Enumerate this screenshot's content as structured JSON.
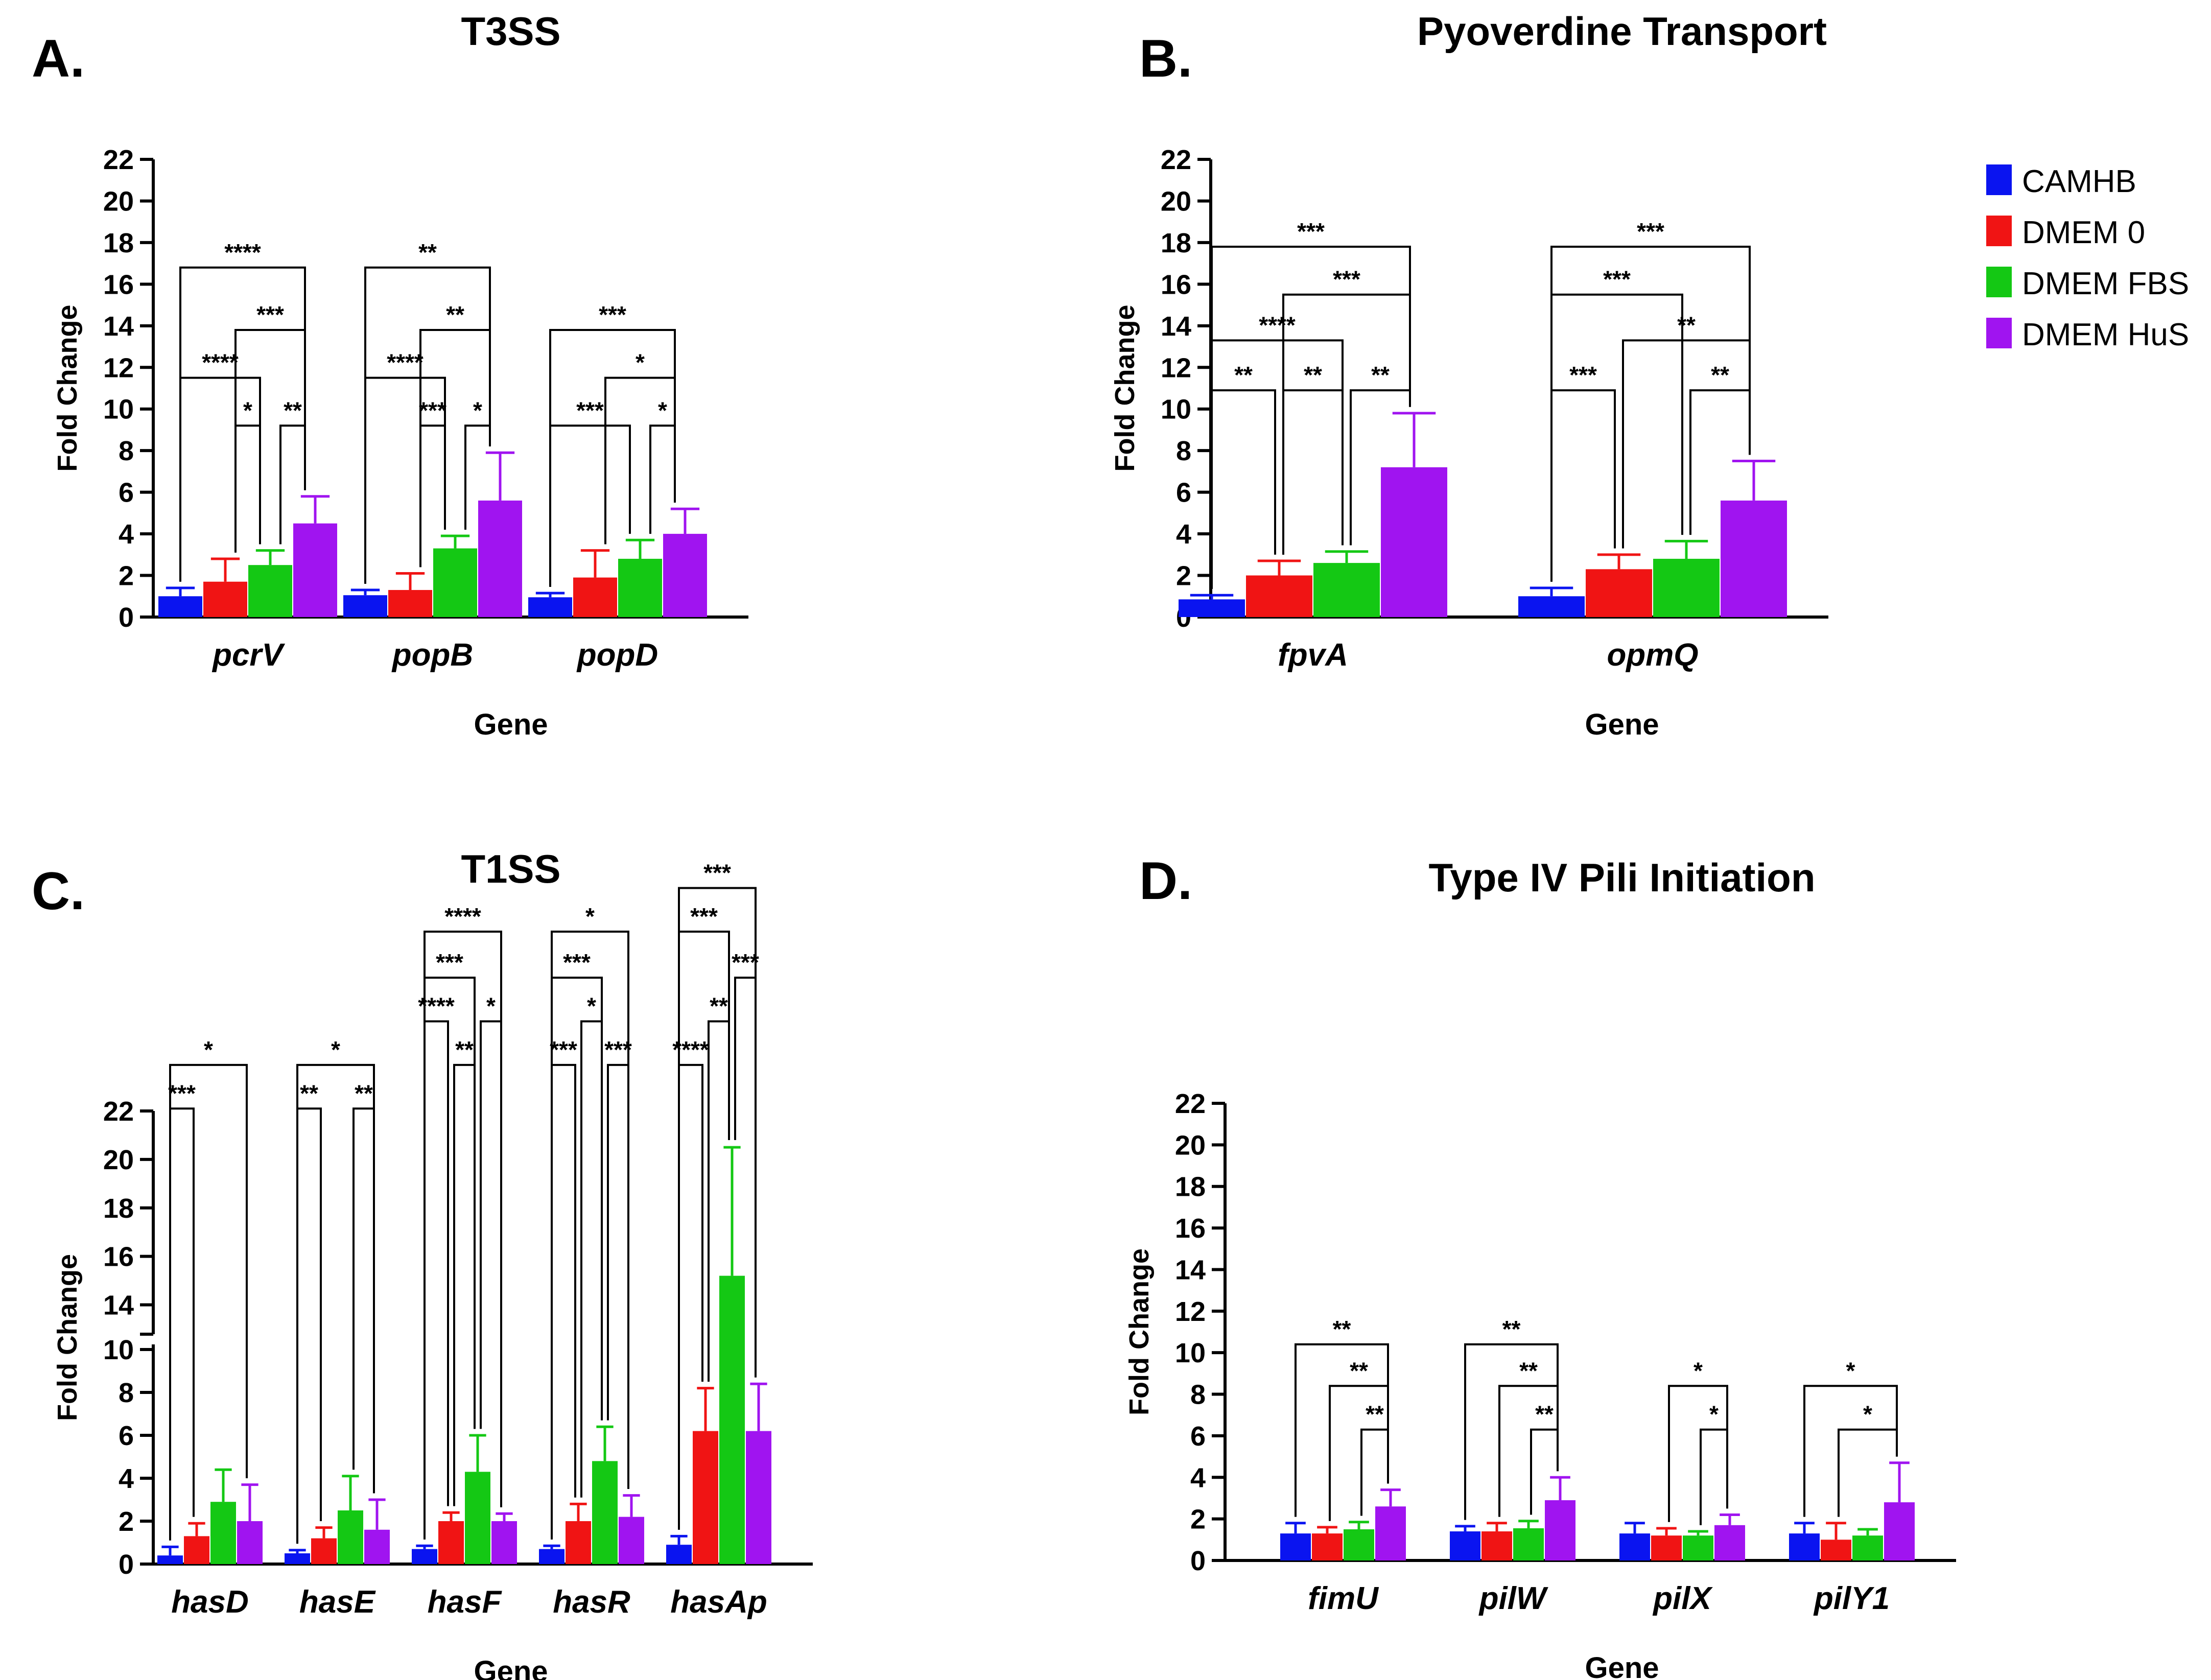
{
  "legend": {
    "position": "top-right",
    "items": [
      {
        "label": "CAMHB",
        "color": "#0a14f0"
      },
      {
        "label": "DMEM 0",
        "color": "#f01414"
      },
      {
        "label": "DMEM FBS",
        "color": "#14c814"
      },
      {
        "label": "DMEM HuS",
        "color": "#a014f0"
      }
    ]
  },
  "chart_data": [
    {
      "panel": "A.",
      "type": "bar",
      "title": "T3SS",
      "xlabel": "Gene",
      "ylabel": "Fold Change",
      "ylim": [
        0,
        22
      ],
      "yticks": [
        0,
        2,
        4,
        6,
        8,
        10,
        12,
        14,
        16,
        18,
        20,
        22
      ],
      "categories": [
        "pcrV",
        "popB",
        "popD"
      ],
      "series": [
        {
          "name": "CAMHB",
          "values": [
            1.0,
            1.05,
            0.95
          ],
          "errors": [
            0.4,
            0.25,
            0.2
          ]
        },
        {
          "name": "DMEM 0",
          "values": [
            1.7,
            1.3,
            1.9
          ],
          "errors": [
            1.1,
            0.8,
            1.3
          ]
        },
        {
          "name": "DMEM FBS",
          "values": [
            2.5,
            3.3,
            2.8
          ],
          "errors": [
            0.7,
            0.6,
            0.9
          ]
        },
        {
          "name": "DMEM HuS",
          "values": [
            4.5,
            5.6,
            4.0
          ],
          "errors": [
            1.3,
            2.3,
            1.2
          ]
        }
      ],
      "significance": [
        {
          "cat": 0,
          "from": 0,
          "to": 3,
          "y": 16.8,
          "label": "****"
        },
        {
          "cat": 0,
          "from": 1,
          "to": 3,
          "y": 13.8,
          "label": "***"
        },
        {
          "cat": 0,
          "from": 0,
          "to": 2,
          "y": 11.5,
          "label": "****"
        },
        {
          "cat": 0,
          "from": 1,
          "to": 2,
          "y": 9.2,
          "label": "*"
        },
        {
          "cat": 0,
          "from": 2,
          "to": 3,
          "y": 9.2,
          "label": "**"
        },
        {
          "cat": 1,
          "from": 0,
          "to": 3,
          "y": 16.8,
          "label": "**"
        },
        {
          "cat": 1,
          "from": 1,
          "to": 3,
          "y": 13.8,
          "label": "**"
        },
        {
          "cat": 1,
          "from": 0,
          "to": 2,
          "y": 11.5,
          "label": "****"
        },
        {
          "cat": 1,
          "from": 1,
          "to": 2,
          "y": 9.2,
          "label": "***"
        },
        {
          "cat": 1,
          "from": 2,
          "to": 3,
          "y": 9.2,
          "label": "*"
        },
        {
          "cat": 2,
          "from": 0,
          "to": 3,
          "y": 13.8,
          "label": "***"
        },
        {
          "cat": 2,
          "from": 1,
          "to": 3,
          "y": 11.5,
          "label": "*"
        },
        {
          "cat": 2,
          "from": 0,
          "to": 2,
          "y": 9.2,
          "label": "***"
        },
        {
          "cat": 2,
          "from": 2,
          "to": 3,
          "y": 9.2,
          "label": "*"
        }
      ]
    },
    {
      "panel": "B.",
      "type": "bar",
      "title": "Pyoverdine Transport",
      "xlabel": "Gene",
      "ylabel": "Fold Change",
      "ylim": [
        0,
        22
      ],
      "yticks": [
        0,
        2,
        4,
        6,
        8,
        10,
        12,
        14,
        16,
        18,
        20,
        22
      ],
      "categories": [
        "fpvA",
        "opmQ"
      ],
      "series": [
        {
          "name": "CAMHB",
          "values": [
            0.85,
            1.0
          ],
          "errors": [
            0.2,
            0.4
          ]
        },
        {
          "name": "DMEM 0",
          "values": [
            2.0,
            2.3
          ],
          "errors": [
            0.7,
            0.7
          ]
        },
        {
          "name": "DMEM FBS",
          "values": [
            2.6,
            2.8
          ],
          "errors": [
            0.55,
            0.85
          ]
        },
        {
          "name": "DMEM HuS",
          "values": [
            7.2,
            5.6
          ],
          "errors": [
            2.6,
            1.9
          ]
        }
      ],
      "significance": [
        {
          "cat": 0,
          "from": 0,
          "to": 3,
          "y": 17.8,
          "label": "***"
        },
        {
          "cat": 0,
          "from": 1,
          "to": 3,
          "y": 15.5,
          "label": "***"
        },
        {
          "cat": 0,
          "from": 0,
          "to": 2,
          "y": 13.3,
          "label": "****"
        },
        {
          "cat": 0,
          "from": 0,
          "to": 1,
          "y": 10.9,
          "label": "**"
        },
        {
          "cat": 0,
          "from": 1,
          "to": 2,
          "y": 10.9,
          "label": "**"
        },
        {
          "cat": 0,
          "from": 2,
          "to": 3,
          "y": 10.9,
          "label": "**"
        },
        {
          "cat": 1,
          "from": 0,
          "to": 3,
          "y": 17.8,
          "label": "***"
        },
        {
          "cat": 1,
          "from": 0,
          "to": 2,
          "y": 15.5,
          "label": "***"
        },
        {
          "cat": 1,
          "from": 1,
          "to": 3,
          "y": 13.3,
          "label": "**"
        },
        {
          "cat": 1,
          "from": 0,
          "to": 1,
          "y": 10.9,
          "label": "***"
        },
        {
          "cat": 1,
          "from": 2,
          "to": 3,
          "y": 10.9,
          "label": "**"
        }
      ]
    },
    {
      "panel": "C.",
      "type": "bar",
      "title": "T1SS",
      "xlabel": "Gene",
      "ylabel": "Fold Change",
      "ylim": [
        0,
        22
      ],
      "axis_break": [
        10,
        13
      ],
      "yticks": [
        0,
        2,
        4,
        6,
        8,
        10,
        14,
        16,
        18,
        20,
        22
      ],
      "categories": [
        "hasD",
        "hasE",
        "hasF",
        "hasR",
        "hasAp"
      ],
      "series": [
        {
          "name": "CAMHB",
          "values": [
            0.4,
            0.5,
            0.7,
            0.7,
            0.9
          ],
          "errors": [
            0.4,
            0.15,
            0.15,
            0.15,
            0.4
          ]
        },
        {
          "name": "DMEM 0",
          "values": [
            1.3,
            1.2,
            2.0,
            2.0,
            6.2
          ],
          "errors": [
            0.6,
            0.5,
            0.4,
            0.8,
            2.0
          ]
        },
        {
          "name": "DMEM FBS",
          "values": [
            2.9,
            2.5,
            4.3,
            4.8,
            15.2
          ],
          "errors": [
            1.5,
            1.6,
            1.7,
            1.6,
            5.3
          ]
        },
        {
          "name": "DMEM HuS",
          "values": [
            2.0,
            1.6,
            2.0,
            2.2,
            6.2
          ],
          "errors": [
            1.7,
            1.4,
            0.35,
            1.0,
            2.2
          ]
        }
      ],
      "significance": [
        {
          "cat": 0,
          "from": 0,
          "to": 3,
          "y": 23.9,
          "label": "*"
        },
        {
          "cat": 0,
          "from": 0,
          "to": 1,
          "y": 22.1,
          "label": "***"
        },
        {
          "cat": 1,
          "from": 0,
          "to": 3,
          "y": 23.9,
          "label": "*"
        },
        {
          "cat": 1,
          "from": 0,
          "to": 1,
          "y": 22.1,
          "label": "**"
        },
        {
          "cat": 1,
          "from": 2,
          "to": 3,
          "y": 22.1,
          "label": "**"
        },
        {
          "cat": 2,
          "from": 0,
          "to": 3,
          "y": 29.4,
          "label": "****"
        },
        {
          "cat": 2,
          "from": 0,
          "to": 2,
          "y": 27.5,
          "label": "***"
        },
        {
          "cat": 2,
          "from": 0,
          "to": 1,
          "y": 25.7,
          "label": "****"
        },
        {
          "cat": 2,
          "from": 2,
          "to": 3,
          "y": 25.7,
          "label": "*"
        },
        {
          "cat": 2,
          "from": 1,
          "to": 2,
          "y": 23.9,
          "label": "**"
        },
        {
          "cat": 3,
          "from": 0,
          "to": 3,
          "y": 29.4,
          "label": "*"
        },
        {
          "cat": 3,
          "from": 0,
          "to": 2,
          "y": 27.5,
          "label": "***"
        },
        {
          "cat": 3,
          "from": 1,
          "to": 2,
          "y": 25.7,
          "label": "*"
        },
        {
          "cat": 3,
          "from": 0,
          "to": 1,
          "y": 23.9,
          "label": "***"
        },
        {
          "cat": 3,
          "from": 2,
          "to": 3,
          "y": 23.9,
          "label": "***"
        },
        {
          "cat": 4,
          "from": 0,
          "to": 3,
          "y": 31.2,
          "label": "***"
        },
        {
          "cat": 4,
          "from": 0,
          "to": 2,
          "y": 29.4,
          "label": "***"
        },
        {
          "cat": 4,
          "from": 1,
          "to": 2,
          "y": 25.7,
          "label": "**"
        },
        {
          "cat": 4,
          "from": 2,
          "to": 3,
          "y": 27.5,
          "label": "***"
        },
        {
          "cat": 4,
          "from": 0,
          "to": 1,
          "y": 23.9,
          "label": "****"
        }
      ]
    },
    {
      "panel": "D.",
      "type": "bar",
      "title": "Type IV Pili Initiation",
      "xlabel": "Gene",
      "ylabel": "Fold Change",
      "ylim": [
        0,
        22
      ],
      "yticks": [
        0,
        2,
        4,
        6,
        8,
        10,
        12,
        14,
        16,
        18,
        20,
        22
      ],
      "categories": [
        "fimU",
        "pilW",
        "pilX",
        "pilY1"
      ],
      "series": [
        {
          "name": "CAMHB",
          "values": [
            1.3,
            1.4,
            1.3,
            1.3
          ],
          "errors": [
            0.5,
            0.25,
            0.5,
            0.5
          ]
        },
        {
          "name": "DMEM 0",
          "values": [
            1.3,
            1.4,
            1.2,
            1.0
          ],
          "errors": [
            0.3,
            0.4,
            0.35,
            0.8
          ]
        },
        {
          "name": "DMEM FBS",
          "values": [
            1.5,
            1.55,
            1.2,
            1.2
          ],
          "errors": [
            0.35,
            0.35,
            0.2,
            0.3
          ]
        },
        {
          "name": "DMEM HuS",
          "values": [
            2.6,
            2.9,
            1.7,
            2.8
          ],
          "errors": [
            0.8,
            1.1,
            0.5,
            1.9
          ]
        }
      ],
      "significance": [
        {
          "cat": 0,
          "from": 0,
          "to": 3,
          "y": 10.4,
          "label": "**"
        },
        {
          "cat": 0,
          "from": 1,
          "to": 3,
          "y": 8.4,
          "label": "**"
        },
        {
          "cat": 0,
          "from": 2,
          "to": 3,
          "y": 6.3,
          "label": "**"
        },
        {
          "cat": 1,
          "from": 0,
          "to": 3,
          "y": 10.4,
          "label": "**"
        },
        {
          "cat": 1,
          "from": 1,
          "to": 3,
          "y": 8.4,
          "label": "**"
        },
        {
          "cat": 1,
          "from": 2,
          "to": 3,
          "y": 6.3,
          "label": "**"
        },
        {
          "cat": 2,
          "from": 1,
          "to": 3,
          "y": 8.4,
          "label": "*"
        },
        {
          "cat": 2,
          "from": 2,
          "to": 3,
          "y": 6.3,
          "label": "*"
        },
        {
          "cat": 3,
          "from": 0,
          "to": 3,
          "y": 8.4,
          "label": "*"
        },
        {
          "cat": 3,
          "from": 1,
          "to": 3,
          "y": 6.3,
          "label": "*"
        }
      ]
    }
  ]
}
